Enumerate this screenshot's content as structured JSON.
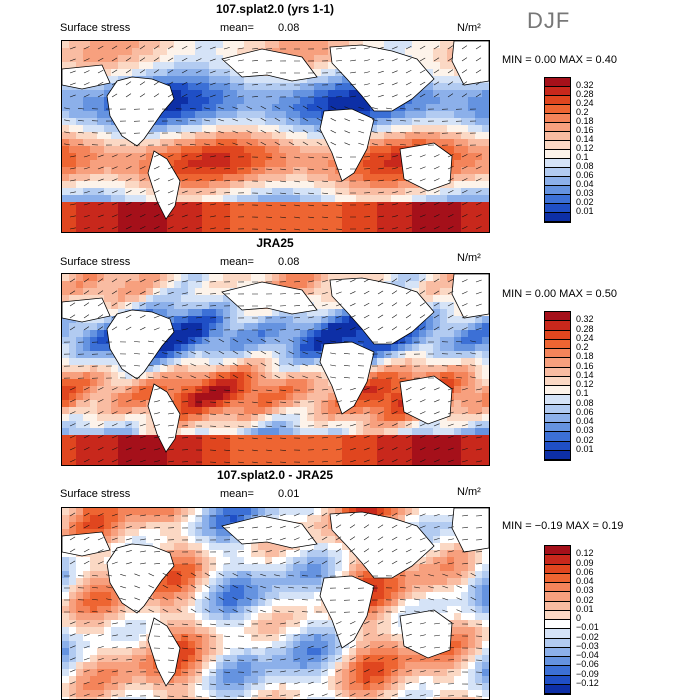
{
  "season": "DJF",
  "units": "N/m²",
  "chart_data": [
    {
      "type": "heatmap",
      "title": "107.splat2.0 (yrs 1-1)",
      "variable": "Surface stress",
      "mean_label": "mean=",
      "mean": "0.08",
      "min_max": "MIN =    0.00 MAX =    0.40",
      "colorbar_levels": [
        "0.32",
        "0.28",
        "0.24",
        "0.2",
        "0.18",
        "0.16",
        "0.14",
        "0.12",
        "0.1",
        "0.08",
        "0.06",
        "0.04",
        "0.03",
        "0.02",
        "0.01"
      ],
      "colorbar_colors": [
        "#a5101a",
        "#c8281c",
        "#e0461f",
        "#ee6532",
        "#f4845a",
        "#f7a07e",
        "#f9bca2",
        "#fbd8c4",
        "#fdf3ea",
        "#d5e3f7",
        "#b2cbf1",
        "#8cb0ea",
        "#6593e0",
        "#3c70d6",
        "#1f4fc6",
        "#0d2fa6"
      ]
    },
    {
      "type": "heatmap",
      "title": "JRA25",
      "variable": "Surface stress",
      "mean_label": "mean=",
      "mean": "0.08",
      "min_max": "MIN =    0.00 MAX =    0.50",
      "colorbar_levels": [
        "0.32",
        "0.28",
        "0.24",
        "0.2",
        "0.18",
        "0.16",
        "0.14",
        "0.12",
        "0.1",
        "0.08",
        "0.06",
        "0.04",
        "0.03",
        "0.02",
        "0.01"
      ],
      "colorbar_colors": [
        "#a5101a",
        "#c8281c",
        "#e0461f",
        "#ee6532",
        "#f4845a",
        "#f7a07e",
        "#f9bca2",
        "#fbd8c4",
        "#fdf3ea",
        "#d5e3f7",
        "#b2cbf1",
        "#8cb0ea",
        "#6593e0",
        "#3c70d6",
        "#1f4fc6",
        "#0d2fa6"
      ]
    },
    {
      "type": "heatmap",
      "title": "107.splat2.0 - JRA25",
      "variable": "Surface stress",
      "mean_label": "mean=",
      "mean": "0.01",
      "min_max": "MIN =   −0.19 MAX =    0.19",
      "colorbar_levels": [
        "0.12",
        "0.09",
        "0.06",
        "0.04",
        "0.03",
        "0.02",
        "0.01",
        "0",
        "−0.01",
        "−0.02",
        "−0.03",
        "−0.04",
        "−0.06",
        "−0.09",
        "−0.12"
      ],
      "colorbar_colors": [
        "#a5101a",
        "#c8281c",
        "#e0461f",
        "#ee6532",
        "#f4845a",
        "#f7a07e",
        "#f9bca2",
        "#fbd8c4",
        "#ffffff",
        "#d5e3f7",
        "#b2cbf1",
        "#8cb0ea",
        "#6593e0",
        "#3c70d6",
        "#1f4fc6",
        "#0d2fa6"
      ]
    }
  ]
}
